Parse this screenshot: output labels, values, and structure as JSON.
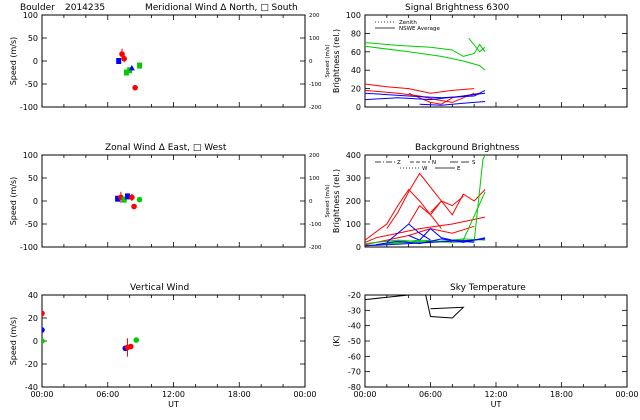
{
  "site": "Boulder",
  "date_code": "2014235",
  "wavelength": "6300",
  "chart_data": [
    {
      "id": "meridional",
      "type": "scatter",
      "title": "Meridional Wind   Δ North, □ South",
      "ylabel": "Speed (m/s)",
      "y2label": "Speed (m/s)",
      "ylim": [
        -100,
        100
      ],
      "yticks": [
        "100",
        "50",
        "0",
        "-50",
        "-100"
      ],
      "y2lim": [
        -200,
        200
      ],
      "y2ticks": [
        "200",
        "100",
        "0",
        "-100",
        "-200"
      ],
      "xlim": [
        0,
        24
      ],
      "points": [
        {
          "x": 7.0,
          "y": 0,
          "color": "#0000ff",
          "marker": "square",
          "err": 0
        },
        {
          "x": 7.3,
          "y": 15,
          "color": "#ff0000",
          "marker": "circle",
          "err": 12
        },
        {
          "x": 7.5,
          "y": 5,
          "color": "#ff0000",
          "marker": "circle",
          "err": 8
        },
        {
          "x": 7.7,
          "y": -25,
          "color": "#00cc00",
          "marker": "square",
          "err": 5
        },
        {
          "x": 8.0,
          "y": -20,
          "color": "#00cc00",
          "marker": "square",
          "err": 0
        },
        {
          "x": 8.2,
          "y": -15,
          "color": "#0000ff",
          "marker": "triangle",
          "err": 0
        },
        {
          "x": 8.5,
          "y": -58,
          "color": "#ff0000",
          "marker": "circle",
          "err": 0
        },
        {
          "x": 8.9,
          "y": -10,
          "color": "#00cc00",
          "marker": "square",
          "err": 0
        }
      ]
    },
    {
      "id": "signal",
      "type": "line",
      "title": "Signal Brightness       6300",
      "ylabel": "Brightness (rel.)",
      "ylim": [
        0,
        100
      ],
      "yticks": [
        "100",
        "80",
        "60",
        "40",
        "20",
        "0"
      ],
      "xlim": [
        0,
        24
      ],
      "legend": [
        {
          "label": "Zenith",
          "dash": "1,2"
        },
        {
          "label": "NSWE Average",
          "dash": ""
        }
      ],
      "series": [
        {
          "color": "#00cc00",
          "x": [
            0,
            3,
            6,
            8,
            9,
            10,
            10.5,
            11
          ],
          "y": [
            70,
            67,
            65,
            62,
            55,
            58,
            68,
            60
          ]
        },
        {
          "color": "#00cc00",
          "x": [
            0,
            4,
            7,
            9,
            10.5,
            11
          ],
          "y": [
            66,
            60,
            55,
            50,
            45,
            40
          ]
        },
        {
          "color": "#00cc00",
          "x": [
            9.5,
            10.5,
            11
          ],
          "y": [
            75,
            60,
            65
          ]
        },
        {
          "color": "#ff0000",
          "x": [
            0,
            2,
            4,
            6,
            8,
            10
          ],
          "y": [
            25,
            22,
            20,
            15,
            18,
            20
          ]
        },
        {
          "color": "#ff0000",
          "x": [
            0,
            3,
            5,
            6.5,
            8,
            10
          ],
          "y": [
            18,
            15,
            12,
            8,
            5,
            15
          ]
        },
        {
          "color": "#ff0000",
          "x": [
            4,
            5,
            6,
            7,
            8,
            10.5
          ],
          "y": [
            15,
            10,
            5,
            3,
            10,
            15
          ]
        },
        {
          "color": "#0000ff",
          "x": [
            0,
            3,
            6,
            9,
            11
          ],
          "y": [
            8,
            10,
            8,
            12,
            15
          ]
        },
        {
          "color": "#0000ff",
          "x": [
            0,
            4,
            7,
            10,
            11
          ],
          "y": [
            15,
            12,
            10,
            12,
            18
          ]
        },
        {
          "color": "#0000ff",
          "x": [
            5,
            7,
            9,
            11
          ],
          "y": [
            3,
            2,
            4,
            6
          ]
        }
      ]
    },
    {
      "id": "zonal",
      "type": "scatter",
      "title": "Zonal Wind     Δ East, □ West",
      "ylabel": "Speed (m/s)",
      "y2label": "Speed (m/s)",
      "ylim": [
        -100,
        100
      ],
      "yticks": [
        "100",
        "50",
        "0",
        "-50",
        "-100"
      ],
      "y2lim": [
        -200,
        200
      ],
      "y2ticks": [
        "200",
        "100",
        "0",
        "-100",
        "-200"
      ],
      "xlim": [
        0,
        24
      ],
      "points": [
        {
          "x": 6.9,
          "y": 5,
          "color": "#0000ff",
          "marker": "square",
          "err": 0
        },
        {
          "x": 7.2,
          "y": 8,
          "color": "#ff0000",
          "marker": "circle",
          "err": 12
        },
        {
          "x": 7.5,
          "y": 3,
          "color": "#00cc00",
          "marker": "square",
          "err": 5
        },
        {
          "x": 7.8,
          "y": 10,
          "color": "#0000ff",
          "marker": "square",
          "err": 5
        },
        {
          "x": 8.2,
          "y": 8,
          "color": "#ff0000",
          "marker": "circle",
          "err": 8
        },
        {
          "x": 8.4,
          "y": -12,
          "color": "#ff0000",
          "marker": "circle",
          "err": 0
        },
        {
          "x": 8.9,
          "y": 3,
          "color": "#00cc00",
          "marker": "circle",
          "err": 0
        }
      ]
    },
    {
      "id": "background",
      "type": "line",
      "title": "Background Brightness",
      "ylabel": "Brightness (rel.)",
      "ylim": [
        0,
        400
      ],
      "yticks": [
        "400",
        "300",
        "200",
        "100",
        "0"
      ],
      "xlim": [
        0,
        24
      ],
      "legend": [
        {
          "label": "Z",
          "dash": "6,2,1,2"
        },
        {
          "label": "N",
          "dash": "4,2"
        },
        {
          "label": "S",
          "dash": "8,3"
        },
        {
          "label": "W",
          "dash": "1,2"
        },
        {
          "label": "E",
          "dash": ""
        }
      ],
      "series": [
        {
          "color": "#ff0000",
          "x": [
            0,
            1,
            3,
            5,
            8,
            11
          ],
          "y": [
            20,
            40,
            60,
            80,
            100,
            130
          ]
        },
        {
          "color": "#ff0000",
          "x": [
            0,
            2,
            3,
            4,
            5,
            7
          ],
          "y": [
            30,
            100,
            180,
            250,
            200,
            80
          ]
        },
        {
          "color": "#ff0000",
          "x": [
            2,
            3,
            4,
            5,
            6,
            7
          ],
          "y": [
            80,
            150,
            240,
            320,
            260,
            200
          ]
        },
        {
          "color": "#ff0000",
          "x": [
            4,
            5,
            6,
            7,
            8,
            9
          ],
          "y": [
            100,
            180,
            140,
            200,
            180,
            220
          ]
        },
        {
          "color": "#ff0000",
          "x": [
            6,
            7,
            8,
            9,
            10,
            11
          ],
          "y": [
            150,
            200,
            140,
            230,
            200,
            250
          ]
        },
        {
          "color": "#ff0000",
          "x": [
            0,
            2,
            4,
            6,
            8,
            10
          ],
          "y": [
            10,
            30,
            50,
            80,
            60,
            90
          ]
        },
        {
          "color": "#00cc00",
          "x": [
            0,
            2,
            4,
            6,
            8,
            10,
            10.8,
            11
          ],
          "y": [
            5,
            15,
            20,
            25,
            20,
            25,
            380,
            400
          ]
        },
        {
          "color": "#00cc00",
          "x": [
            1,
            3,
            5,
            7,
            9,
            11
          ],
          "y": [
            10,
            20,
            30,
            25,
            30,
            240
          ]
        },
        {
          "color": "#00cc00",
          "x": [
            0,
            3,
            6,
            9,
            11
          ],
          "y": [
            15,
            30,
            20,
            35,
            30
          ]
        },
        {
          "color": "#0000ff",
          "x": [
            0,
            2,
            4,
            6,
            8,
            10,
            11
          ],
          "y": [
            5,
            10,
            15,
            20,
            25,
            30,
            35
          ]
        },
        {
          "color": "#0000ff",
          "x": [
            2,
            3,
            4,
            5,
            6
          ],
          "y": [
            20,
            60,
            100,
            60,
            30
          ]
        },
        {
          "color": "#0000ff",
          "x": [
            4,
            5,
            6,
            7,
            8,
            10
          ],
          "y": [
            50,
            30,
            80,
            40,
            30,
            20
          ]
        },
        {
          "color": "#0000ff",
          "x": [
            1,
            3,
            5,
            7,
            9,
            11
          ],
          "y": [
            10,
            25,
            15,
            35,
            20,
            40
          ]
        }
      ]
    },
    {
      "id": "vertical",
      "type": "scatter",
      "title": "Vertical Wind",
      "ylabel": "Speed (m/s)",
      "ylim": [
        -50,
        50
      ],
      "yticks": [
        "40",
        "20",
        "0",
        "-20",
        "-40"
      ],
      "xlim": [
        0,
        24
      ],
      "xlabel": "UT",
      "xticks": [
        "00:00",
        "06:00",
        "12:00",
        "18:00",
        "00:00"
      ],
      "points": [
        {
          "x": 0.0,
          "y": 30,
          "color": "#ff0000",
          "marker": "circle",
          "err": 0
        },
        {
          "x": 0.0,
          "y": 12,
          "color": "#0000ff",
          "marker": "circle",
          "err": 0
        },
        {
          "x": 0.0,
          "y": 0,
          "color": "#00cc00",
          "marker": "circle",
          "err": 0
        },
        {
          "x": 7.6,
          "y": -8,
          "color": "#0000ff",
          "marker": "circle",
          "err": 0
        },
        {
          "x": 7.8,
          "y": -7,
          "color": "#ff0000",
          "marker": "circle",
          "err": 10
        },
        {
          "x": 8.1,
          "y": -6,
          "color": "#ff0000",
          "marker": "circle",
          "err": 0
        },
        {
          "x": 8.6,
          "y": 1,
          "color": "#00cc00",
          "marker": "circle",
          "err": 0
        }
      ]
    },
    {
      "id": "skytemp",
      "type": "line",
      "title": "Sky Temperature",
      "ylabel": "(K)",
      "ylim": [
        -80,
        -20
      ],
      "yticks": [
        "-20",
        "-30",
        "-40",
        "-50",
        "-60",
        "-70",
        "-80"
      ],
      "xlim": [
        0,
        24
      ],
      "xlabel": "UT",
      "xticks": [
        "00:00",
        "06:00",
        "12:00",
        "18:00",
        "00:00"
      ],
      "series": [
        {
          "color": "#000000",
          "x": [
            0,
            4,
            5.5,
            6,
            8,
            9,
            6
          ],
          "y": [
            -23,
            -20,
            -18,
            -34,
            -35,
            -28,
            -29
          ]
        }
      ]
    }
  ]
}
